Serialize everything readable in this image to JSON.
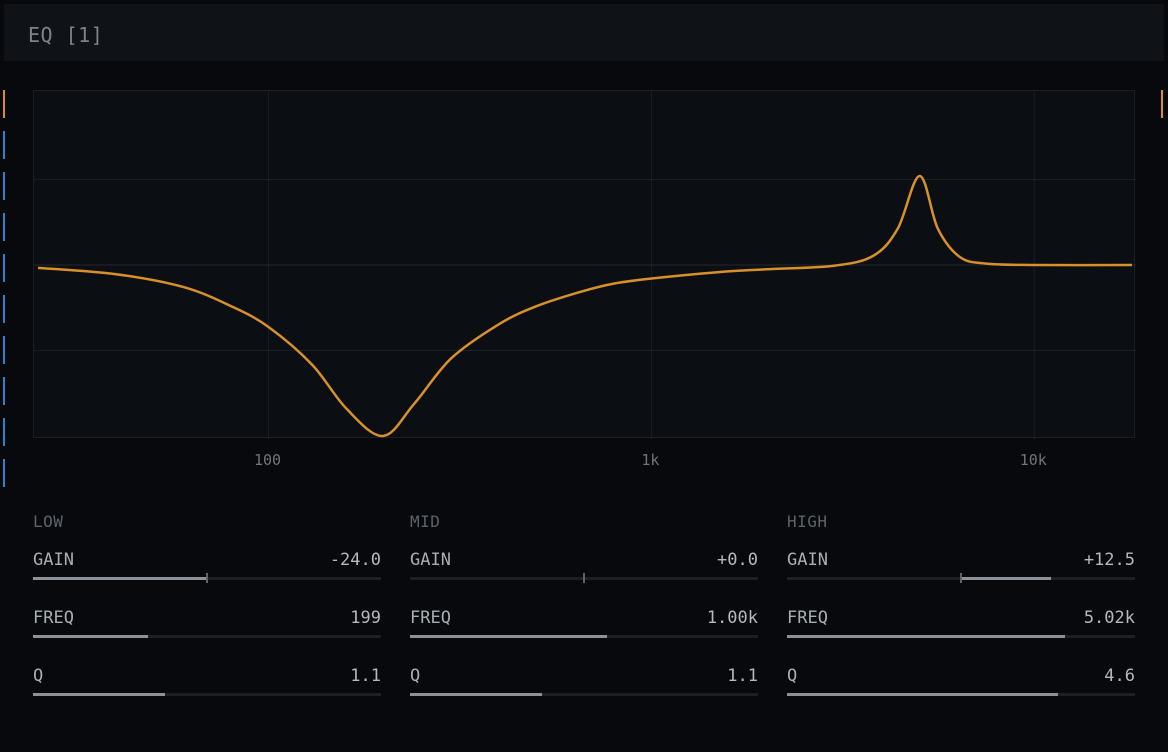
{
  "title": "EQ [1]",
  "colors": {
    "curve": "#d8902a",
    "marker_orange": "#d8902a",
    "marker_blue": "#2c82c9"
  },
  "chart_data": {
    "type": "line",
    "x_scale": "log",
    "xlim": [
      25,
      18000
    ],
    "ylim": [
      -24,
      24
    ],
    "x_ticks": [
      "100",
      "1k",
      "10k"
    ],
    "x_tick_values": [
      100,
      1000,
      10000
    ],
    "y_grid_values": [
      12,
      0,
      -12
    ],
    "grid": true,
    "series": [
      {
        "points": [
          [
            25,
            -0.4
          ],
          [
            40,
            -1.3
          ],
          [
            60,
            -3.1
          ],
          [
            80,
            -5.8
          ],
          [
            100,
            -8.7
          ],
          [
            130,
            -14
          ],
          [
            160,
            -20.2
          ],
          [
            199,
            -24
          ],
          [
            240,
            -19.5
          ],
          [
            300,
            -13.1
          ],
          [
            400,
            -8.3
          ],
          [
            500,
            -5.8
          ],
          [
            650,
            -3.8
          ],
          [
            800,
            -2.6
          ],
          [
            1000,
            -1.9
          ],
          [
            1500,
            -1.0
          ],
          [
            2000,
            -0.6
          ],
          [
            3000,
            -0.1
          ],
          [
            3800,
            1.3
          ],
          [
            4400,
            5.1
          ],
          [
            5020,
            12.5
          ],
          [
            5600,
            5.1
          ],
          [
            6400,
            1.1
          ],
          [
            7500,
            0.2
          ],
          [
            10000,
            0.0
          ],
          [
            18000,
            0.0
          ]
        ]
      }
    ]
  },
  "bands": [
    {
      "label": "LOW",
      "params": [
        {
          "name": "GAIN",
          "value": "-24.0",
          "level": 0.0,
          "bipolar": true
        },
        {
          "name": "FREQ",
          "value": "199",
          "level": 0.33
        },
        {
          "name": "Q",
          "value": "1.1",
          "level": 0.38
        }
      ]
    },
    {
      "label": "MID",
      "params": [
        {
          "name": "GAIN",
          "value": "+0.0",
          "level": 0.5,
          "bipolar": true
        },
        {
          "name": "FREQ",
          "value": "1.00k",
          "level": 0.565
        },
        {
          "name": "Q",
          "value": "1.1",
          "level": 0.38
        }
      ]
    },
    {
      "label": "HIGH",
      "params": [
        {
          "name": "GAIN",
          "value": "+12.5",
          "level": 0.76,
          "bipolar": true
        },
        {
          "name": "FREQ",
          "value": "5.02k",
          "level": 0.8
        },
        {
          "name": "Q",
          "value": "4.6",
          "level": 0.78
        }
      ]
    }
  ]
}
